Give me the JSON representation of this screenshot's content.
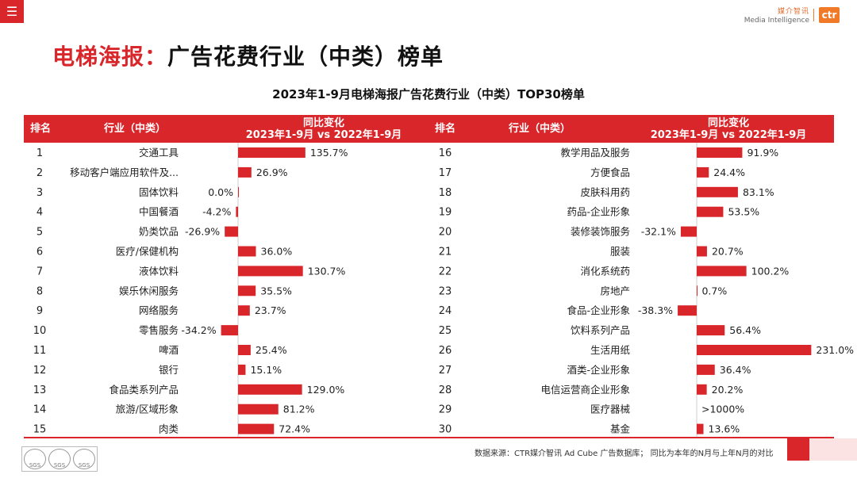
{
  "header": {
    "menu_icon": "hamburger-icon",
    "logo_cn": "媒介智讯",
    "logo_en": "Media Intelligence",
    "logo_mark": "ctr"
  },
  "page": {
    "title_prefix": "电梯海报：",
    "title_main": "广告花费行业（中类）榜单"
  },
  "table": {
    "col_rank": "排名",
    "col_industry": "行业（中类）",
    "col_change_line1": "同比变化",
    "col_change_line2": "2023年1-9月 vs 2022年1-9月"
  },
  "chart_data": {
    "type": "bar",
    "orientation": "horizontal",
    "title": "2023年1-9月电梯海报广告花费行业（中类）TOP30榜单",
    "unit": "%",
    "series": [
      {
        "name": "同比变化",
        "rows": [
          {
            "rank": 1,
            "industry": "交通工具",
            "value": 135.7,
            "label": "135.7%"
          },
          {
            "rank": 2,
            "industry": "移动客户端应用软件及...",
            "value": 26.9,
            "label": "26.9%"
          },
          {
            "rank": 3,
            "industry": "固体饮料",
            "value": 0.0,
            "label": "0.0%"
          },
          {
            "rank": 4,
            "industry": "中国餐酒",
            "value": -4.2,
            "label": "-4.2%"
          },
          {
            "rank": 5,
            "industry": "奶类饮品",
            "value": -26.9,
            "label": "-26.9%"
          },
          {
            "rank": 6,
            "industry": "医疗/保健机构",
            "value": 36.0,
            "label": "36.0%"
          },
          {
            "rank": 7,
            "industry": "液体饮料",
            "value": 130.7,
            "label": "130.7%"
          },
          {
            "rank": 8,
            "industry": "娱乐休闲服务",
            "value": 35.5,
            "label": "35.5%"
          },
          {
            "rank": 9,
            "industry": "网络服务",
            "value": 23.7,
            "label": "23.7%"
          },
          {
            "rank": 10,
            "industry": "零售服务",
            "value": -34.2,
            "label": "-34.2%"
          },
          {
            "rank": 11,
            "industry": "啤酒",
            "value": 25.4,
            "label": "25.4%"
          },
          {
            "rank": 12,
            "industry": "银行",
            "value": 15.1,
            "label": "15.1%"
          },
          {
            "rank": 13,
            "industry": "食品类系列产品",
            "value": 129.0,
            "label": "129.0%"
          },
          {
            "rank": 14,
            "industry": "旅游/区域形象",
            "value": 81.2,
            "label": "81.2%"
          },
          {
            "rank": 15,
            "industry": "肉类",
            "value": 72.4,
            "label": "72.4%"
          }
        ]
      },
      {
        "name": "同比变化",
        "rows": [
          {
            "rank": 16,
            "industry": "教学用品及服务",
            "value": 91.9,
            "label": "91.9%"
          },
          {
            "rank": 17,
            "industry": "方便食品",
            "value": 24.4,
            "label": "24.4%"
          },
          {
            "rank": 18,
            "industry": "皮肤科用药",
            "value": 83.1,
            "label": "83.1%"
          },
          {
            "rank": 19,
            "industry": "药品-企业形象",
            "value": 53.5,
            "label": "53.5%"
          },
          {
            "rank": 20,
            "industry": "装修装饰服务",
            "value": -32.1,
            "label": "-32.1%"
          },
          {
            "rank": 21,
            "industry": "服装",
            "value": 20.7,
            "label": "20.7%"
          },
          {
            "rank": 22,
            "industry": "消化系统药",
            "value": 100.2,
            "label": "100.2%"
          },
          {
            "rank": 23,
            "industry": "房地产",
            "value": 0.7,
            "label": "0.7%"
          },
          {
            "rank": 24,
            "industry": "食品-企业形象",
            "value": -38.3,
            "label": "-38.3%"
          },
          {
            "rank": 25,
            "industry": "饮料系列产品",
            "value": 56.4,
            "label": "56.4%"
          },
          {
            "rank": 26,
            "industry": "生活用纸",
            "value": 231.0,
            "label": "231.0%"
          },
          {
            "rank": 27,
            "industry": "酒类-企业形象",
            "value": 36.4,
            "label": "36.4%"
          },
          {
            "rank": 28,
            "industry": "电信运营商企业形象",
            "value": 20.2,
            "label": "20.2%"
          },
          {
            "rank": 29,
            "industry": "医疗器械",
            "value": null,
            "label": ">1000%"
          },
          {
            "rank": 30,
            "industry": "基金",
            "value": 13.6,
            "label": "13.6%"
          }
        ]
      }
    ]
  },
  "footer": {
    "source": "数据来源：CTR媒介智讯 Ad Cube 广告数据库；  同比为本年的N月与上年N月的对比",
    "cert_label": "SGS"
  },
  "colors": {
    "accent": "#d9262b",
    "bar": "#d9262b"
  }
}
